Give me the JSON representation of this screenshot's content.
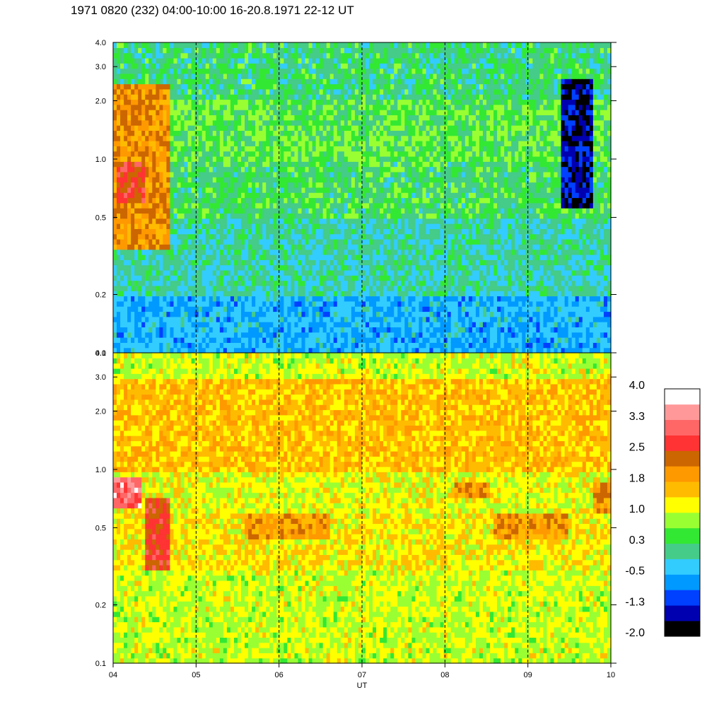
{
  "chart_data": {
    "type": "heatmap",
    "title": "1971 0820 (232) 04:00-10:00 16-20.8.1971  22-12 UT",
    "xlabel": "UT",
    "x_ticks": [
      "04",
      "05",
      "06",
      "07",
      "08",
      "09",
      "10"
    ],
    "xlim": [
      4,
      10
    ],
    "dashed_lines_x": [
      5,
      6,
      7,
      8,
      9
    ],
    "y_scale": "log",
    "ylim": [
      0.1,
      4.0
    ],
    "y_ticks": [
      {
        "value": 4.0,
        "label": "4.0"
      },
      {
        "value": 3.0,
        "label": "3.0"
      },
      {
        "value": 2.0,
        "label": "2.0"
      },
      {
        "value": 1.0,
        "label": "1.0"
      },
      {
        "value": 0.5,
        "label": "0.5"
      },
      {
        "value": 0.2,
        "label": "0.2"
      },
      {
        "value": 0.1,
        "label": "0.1"
      }
    ],
    "panels": [
      {
        "name": "upper",
        "dominant": "green to cyan; orange/red patch near 04:00-04:40 around 0.5-1.5; blue streaks near 09:30-09:45 above 0.5",
        "bands": [
          {
            "y": [
              0.1,
              0.2
            ],
            "level": -0.5
          },
          {
            "y": [
              0.2,
              0.5
            ],
            "level": 0.0
          },
          {
            "y": [
              0.5,
              1.0
            ],
            "level": 0.3
          },
          {
            "y": [
              1.0,
              2.0
            ],
            "level": 0.5
          },
          {
            "y": [
              2.0,
              4.0
            ],
            "level": 0.2
          }
        ],
        "patches": [
          {
            "x": [
              4.0,
              4.7
            ],
            "y": [
              0.35,
              2.5
            ],
            "level": 2.0
          },
          {
            "x": [
              4.05,
              4.4
            ],
            "y": [
              0.6,
              0.95
            ],
            "level": 2.6
          },
          {
            "x": [
              9.4,
              9.8
            ],
            "y": [
              0.55,
              2.6
            ],
            "level": -1.5
          }
        ]
      },
      {
        "name": "lower",
        "dominant": "yellow to orange; pink/red patch near 04:00-04:40 around 0.6-0.9; orange bands near 0.5 and 0.8",
        "bands": [
          {
            "y": [
              0.1,
              0.3
            ],
            "level": 1.0
          },
          {
            "y": [
              0.3,
              0.6
            ],
            "level": 1.3
          },
          {
            "y": [
              0.6,
              1.0
            ],
            "level": 1.1
          },
          {
            "y": [
              1.0,
              3.0
            ],
            "level": 1.6
          },
          {
            "y": [
              3.0,
              4.0
            ],
            "level": 1.0
          }
        ],
        "patches": [
          {
            "x": [
              4.0,
              4.35
            ],
            "y": [
              0.65,
              0.92
            ],
            "level": 3.2
          },
          {
            "x": [
              4.4,
              4.7
            ],
            "y": [
              0.3,
              0.7
            ],
            "level": 2.6
          },
          {
            "x": [
              5.6,
              6.6
            ],
            "y": [
              0.45,
              0.6
            ],
            "level": 1.9
          },
          {
            "x": [
              8.1,
              8.55
            ],
            "y": [
              0.7,
              0.85
            ],
            "level": 2.0
          },
          {
            "x": [
              8.6,
              9.5
            ],
            "y": [
              0.45,
              0.6
            ],
            "level": 1.9
          },
          {
            "x": [
              9.8,
              10.0
            ],
            "y": [
              0.6,
              0.85
            ],
            "level": 2.0
          }
        ]
      }
    ],
    "colorbar": {
      "labels": [
        "4.0",
        "3.3",
        "2.5",
        "1.8",
        "1.0",
        "0.3",
        "-0.5",
        "-1.3",
        "-2.0"
      ],
      "levels_low_to_high": [
        -2.0,
        -1.6,
        -1.3,
        -0.9,
        -0.5,
        -0.1,
        0.3,
        0.6,
        1.0,
        1.4,
        1.8,
        2.1,
        2.5,
        2.9,
        3.3,
        3.6
      ],
      "colors_low_to_high": [
        "#000000",
        "#0000b0",
        "#0040ff",
        "#0099ff",
        "#33ccff",
        "#44cc88",
        "#33e833",
        "#99ff33",
        "#ffff00",
        "#ffbb00",
        "#ff9900",
        "#cc6600",
        "#ff3333",
        "#ff6666",
        "#ff9999",
        "#ffffff"
      ]
    }
  }
}
